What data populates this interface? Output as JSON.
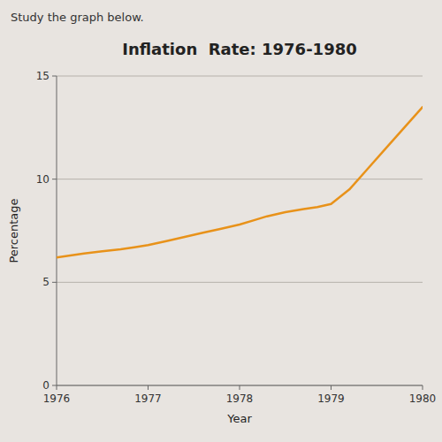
{
  "chart_data": {
    "type": "line",
    "title": "Inflation  Rate: 1976-1980",
    "subtitle": "Study the graph below.",
    "x_label": "Year",
    "y_label": "Percentage",
    "x": [
      1976.0,
      1976.15,
      1976.3,
      1976.5,
      1976.7,
      1976.85,
      1977.0,
      1977.2,
      1977.4,
      1977.6,
      1977.8,
      1978.0,
      1978.15,
      1978.3,
      1978.5,
      1978.7,
      1978.85,
      1979.0,
      1979.2,
      1979.4,
      1979.6,
      1979.8,
      1980.0
    ],
    "values": [
      6.2,
      6.3,
      6.4,
      6.5,
      6.6,
      6.7,
      6.8,
      7.0,
      7.2,
      7.4,
      7.6,
      7.8,
      8.0,
      8.2,
      8.4,
      8.55,
      8.65,
      8.8,
      9.5,
      10.5,
      11.5,
      12.5,
      13.5
    ],
    "color": "#E8921A",
    "xlim": [
      1976,
      1980
    ],
    "ylim": [
      0,
      15
    ],
    "xticks": [
      1976,
      1977,
      1978,
      1979,
      1980
    ],
    "yticks": [
      0,
      5,
      10,
      15
    ],
    "grid": true
  }
}
